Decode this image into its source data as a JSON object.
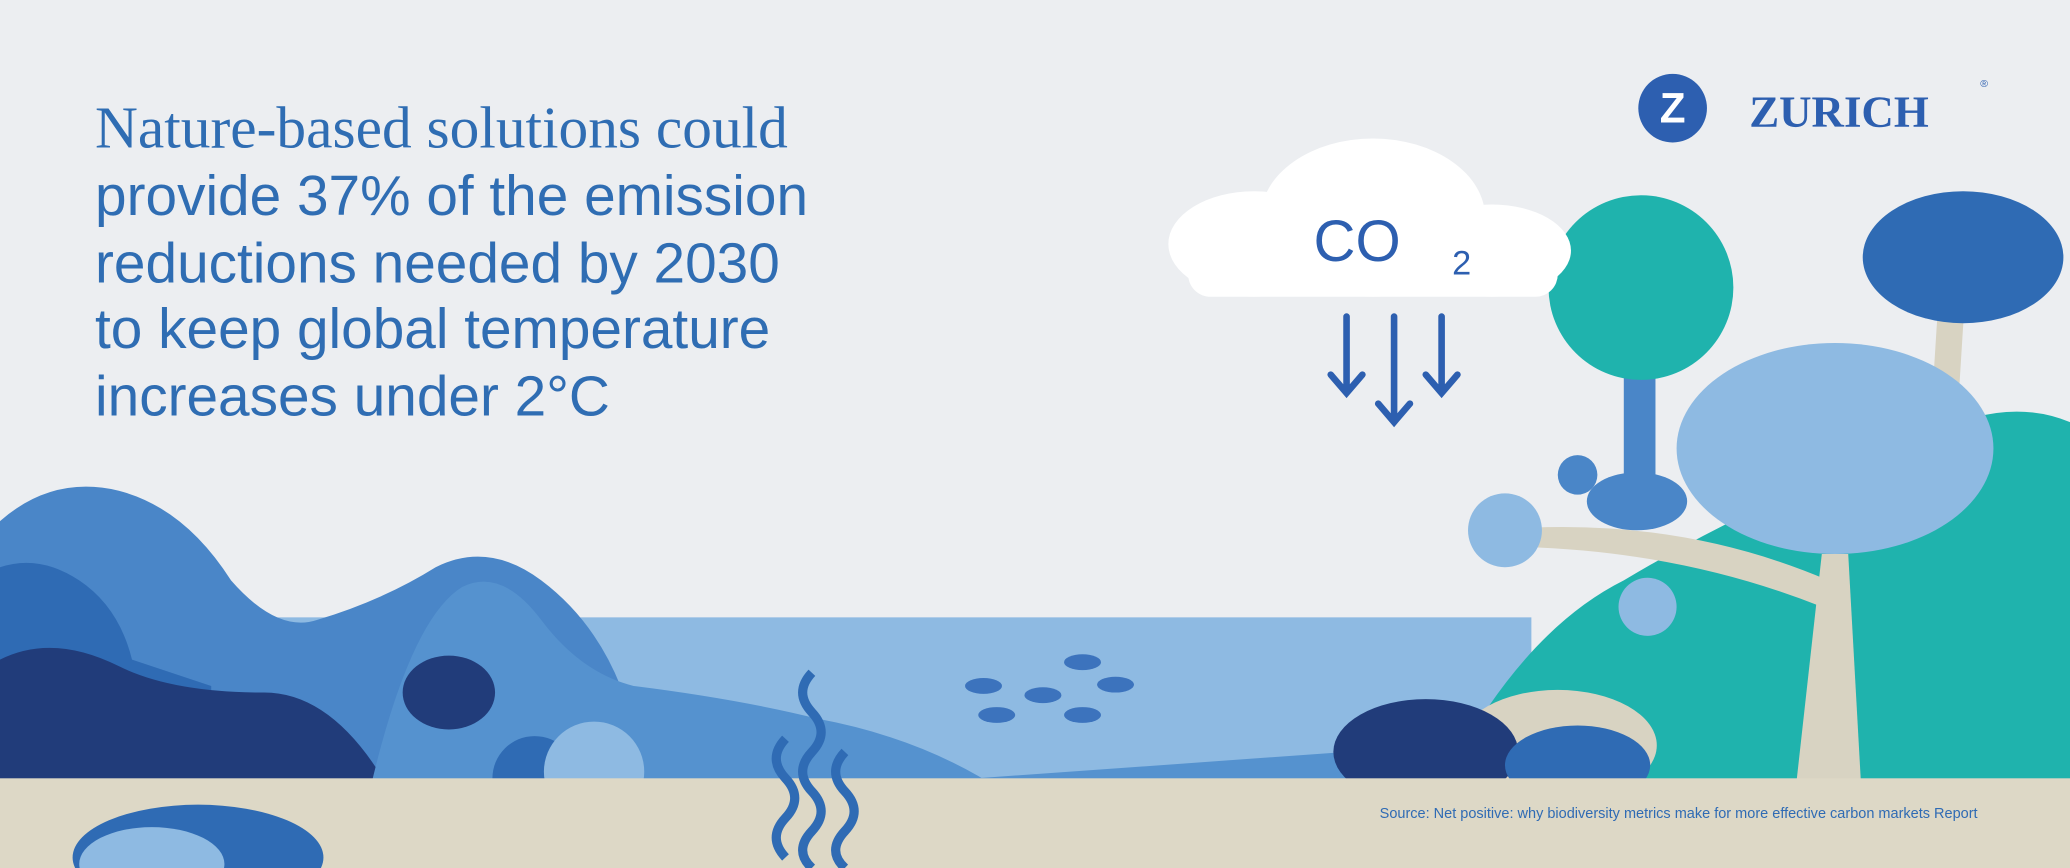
{
  "headline": {
    "lines": [
      "Nature-based solutions could",
      "provide 37% of the emission",
      "reductions needed by 2030",
      "to keep global temperature",
      "increases under 2°C"
    ]
  },
  "logo": {
    "mark": "Z",
    "text": "ZURICH",
    "registered": "®"
  },
  "co2": {
    "text": "CO",
    "subscript": "2"
  },
  "source": "Source: Net positive: why biodiversity metrics make for more effective carbon markets Report"
}
